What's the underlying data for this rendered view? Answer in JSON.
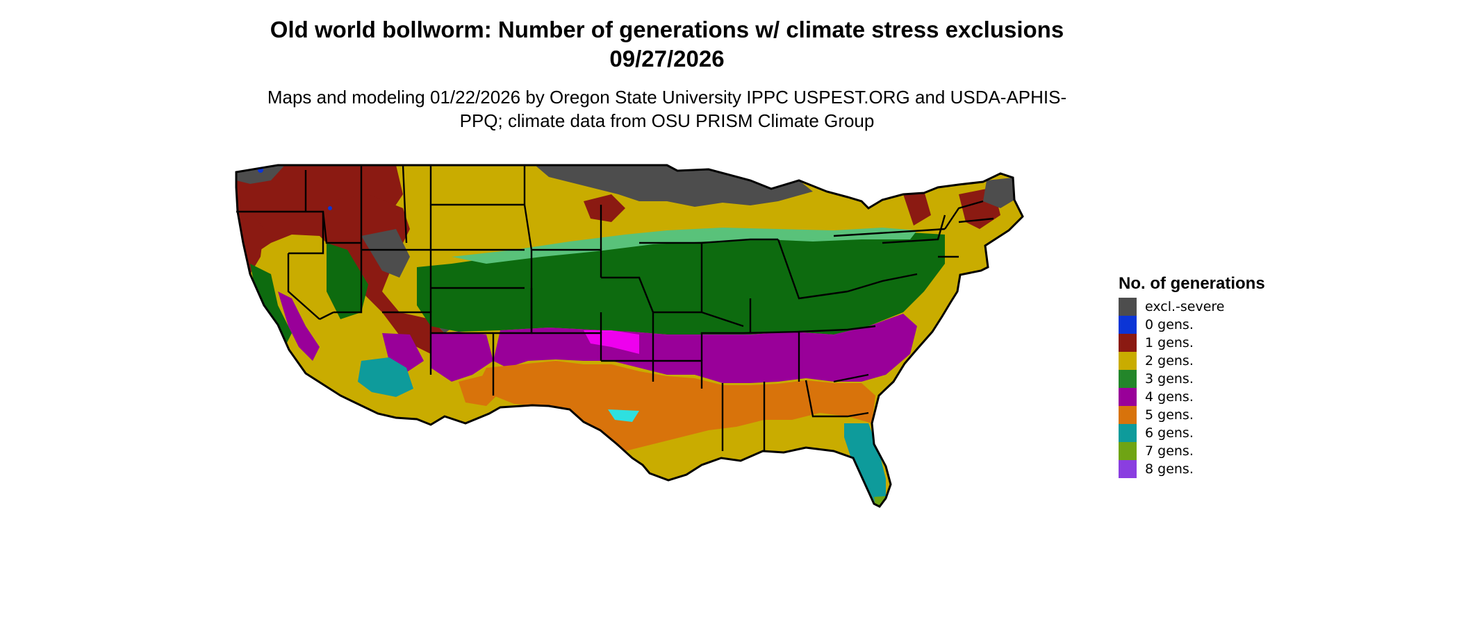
{
  "title": "Old world bollworm: Number of generations w/ climate stress exclusions 09/27/2026",
  "subtitle": "Maps and modeling 01/22/2026 by Oregon State University IPPC USPEST.ORG and USDA-APHIS-PPQ; climate data from OSU PRISM Climate Group",
  "legend": {
    "title": "No. of generations",
    "items": [
      {
        "label": "excl.-severe",
        "color": "#4d4d4d"
      },
      {
        "label": "0 gens.",
        "color": "#0b35d6"
      },
      {
        "label": "1 gens.",
        "color": "#8b1a12"
      },
      {
        "label": "2 gens.",
        "color": "#c9ac00"
      },
      {
        "label": "3 gens.",
        "color": "#23862a"
      },
      {
        "label": "4 gens.",
        "color": "#990099"
      },
      {
        "label": "5 gens.",
        "color": "#d8730b"
      },
      {
        "label": "6 gens.",
        "color": "#0e9b9b"
      },
      {
        "label": "7 gens.",
        "color": "#6fa414"
      },
      {
        "label": "8 gens.",
        "color": "#8a3ee0"
      }
    ]
  },
  "map": {
    "fill_colors": {
      "excl_severe": "#4d4d4d",
      "gen0": "#0b35d6",
      "gen1": "#8b1a12",
      "gen2": "#c9ac00",
      "gen3": "#0d6b0f",
      "gen3_light": "#59c27a",
      "gen4": "#990099",
      "gen4_bright": "#ee00ee",
      "gen5": "#d8730b",
      "gen6": "#0e9b9b",
      "gen6_light": "#2ee0e0",
      "gen7": "#6fa414"
    }
  }
}
